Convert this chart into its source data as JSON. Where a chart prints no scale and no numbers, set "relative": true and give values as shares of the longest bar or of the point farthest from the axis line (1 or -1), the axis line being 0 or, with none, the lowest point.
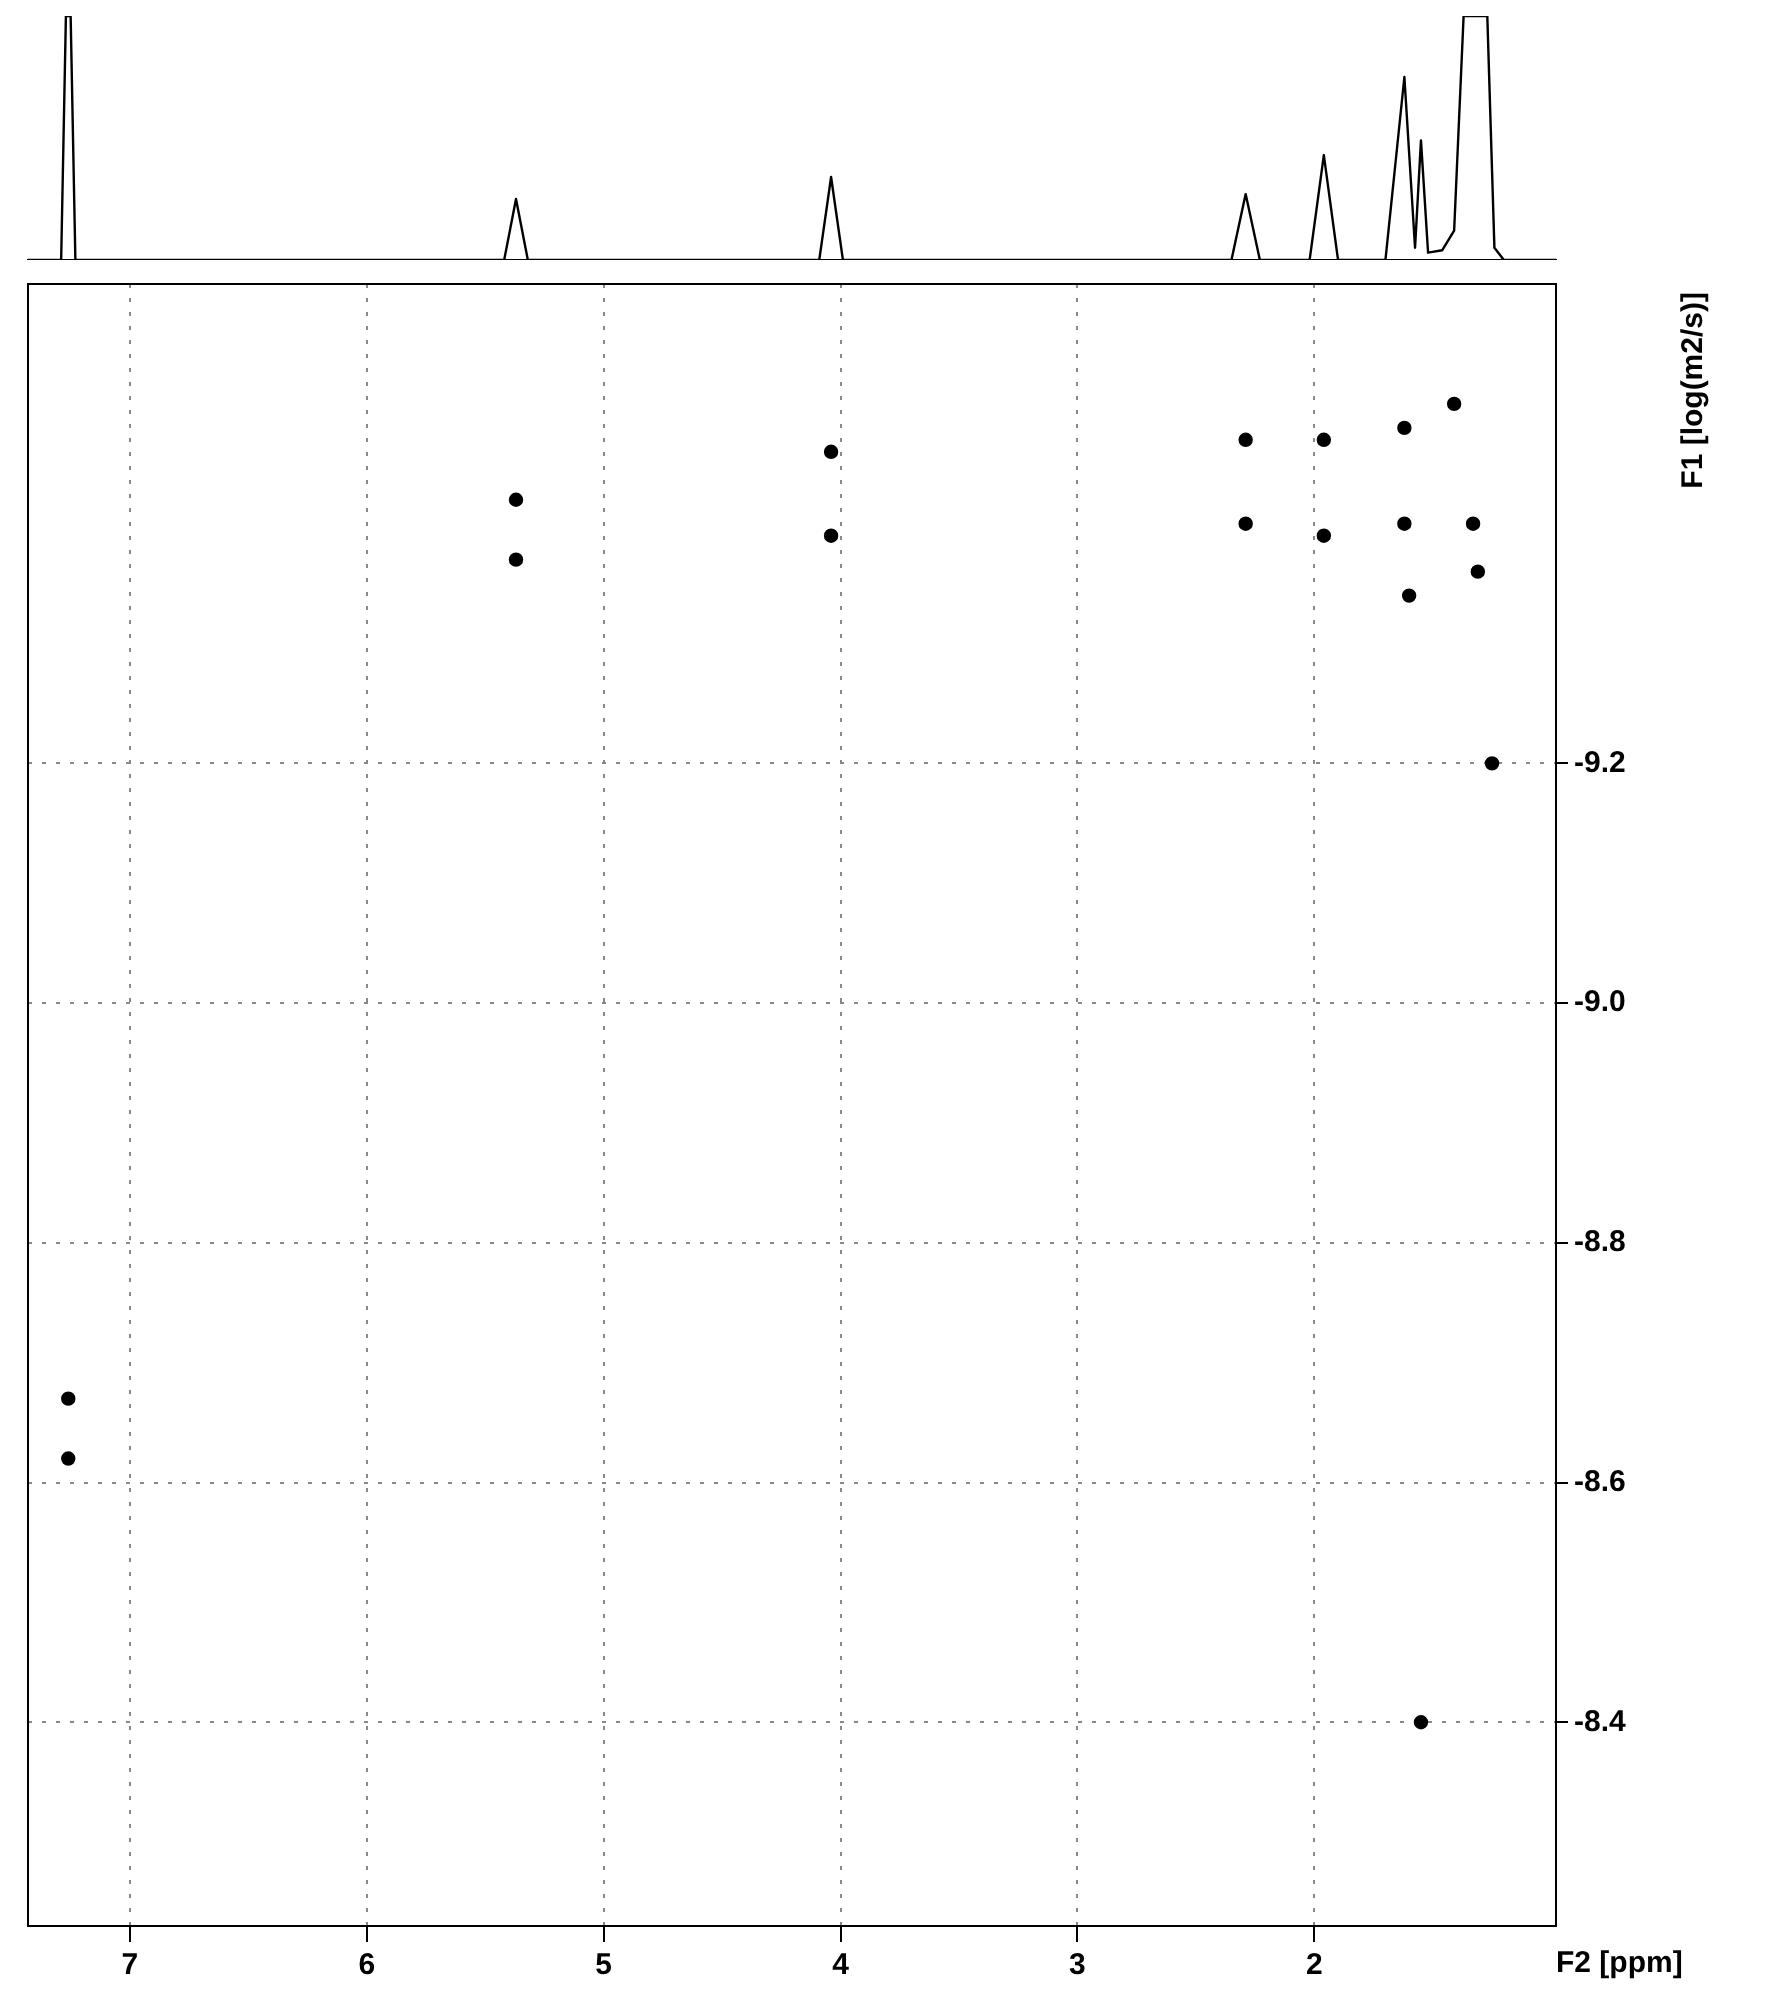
{
  "chart_data": [
    {
      "type": "line",
      "relative": true,
      "grid": false,
      "legend": false,
      "marker": "none",
      "line_style": "solid",
      "xlim": [
        7.43,
        0.98
      ],
      "series": [
        {
          "color": "#000000",
          "x": [
            7.43,
            7.29,
            7.27,
            7.25,
            7.23,
            5.42,
            5.37,
            5.32,
            4.09,
            4.04,
            3.99,
            2.35,
            2.29,
            2.23,
            2.02,
            1.96,
            1.9,
            1.7,
            1.62,
            1.575,
            1.55,
            1.52,
            1.46,
            1.41,
            1.37,
            1.27,
            1.24,
            1.2,
            0.98
          ],
          "values": [
            0,
            0,
            1,
            1,
            0,
            0,
            0.25,
            0,
            0,
            0.34,
            0,
            0,
            0.27,
            0,
            0,
            0.43,
            0,
            0,
            0.75,
            0.05,
            0.49,
            0.03,
            0.04,
            0.12,
            1,
            1,
            0.05,
            0,
            0
          ]
        }
      ]
    },
    {
      "type": "scatter",
      "xlabel": "F2 [ppm]",
      "ylabel": "F1 [log(m2/s)]",
      "grid": true,
      "legend": false,
      "marker": "circle",
      "xlim": [
        7.43,
        0.98
      ],
      "xticks": [
        7,
        6,
        5,
        4,
        3,
        2
      ],
      "ylim": [
        -8.23,
        -9.6
      ],
      "yticks": [
        -9.2,
        {
          "value": -9.0,
          "label": "-9.0"
        },
        -8.8,
        -8.6,
        -8.4
      ],
      "series": [
        {
          "color": "#000000",
          "x": [
            7.26,
            7.26,
            5.37,
            5.37,
            4.04,
            4.04,
            2.29,
            2.29,
            1.96,
            1.96,
            1.62,
            1.62,
            1.6,
            1.41,
            1.33,
            1.31,
            1.25,
            1.55
          ],
          "values": [
            -8.67,
            -8.62,
            -9.42,
            -9.37,
            -9.46,
            -9.39,
            -9.47,
            -9.4,
            -9.47,
            -9.39,
            -9.48,
            -9.4,
            -9.34,
            -9.5,
            -9.4,
            -9.36,
            -9.2,
            -8.4
          ]
        }
      ]
    }
  ]
}
